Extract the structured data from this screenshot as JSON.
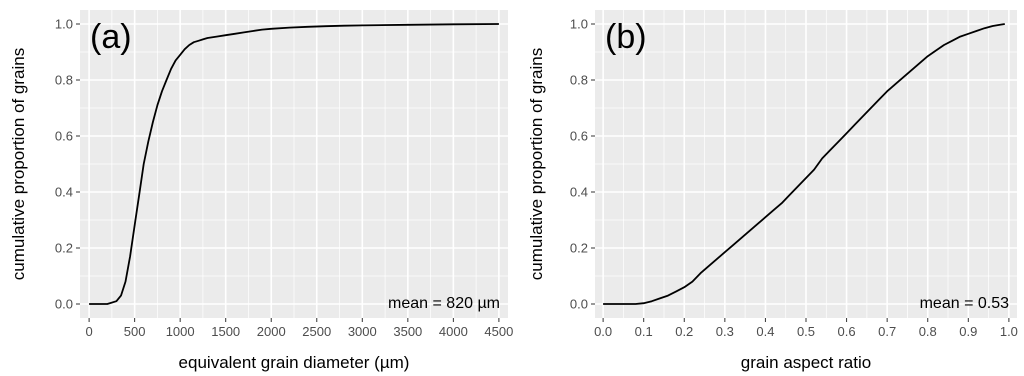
{
  "chart_data": [
    {
      "type": "line",
      "panel_label": "(a)",
      "xlabel": "equivalent grain diameter (µm)",
      "ylabel": "cumulative proportion of grains",
      "xlim": [
        -100,
        4600
      ],
      "ylim": [
        -0.05,
        1.05
      ],
      "xticks": [
        "0",
        "500",
        "1000",
        "1500",
        "2000",
        "2500",
        "3000",
        "3500",
        "4000",
        "4500"
      ],
      "yticks": [
        "0.0",
        "0.2",
        "0.4",
        "0.6",
        "0.8",
        "1.0"
      ],
      "annotation": "mean = 820 µm",
      "grid": true,
      "x": [
        0,
        200,
        300,
        350,
        400,
        450,
        500,
        550,
        600,
        650,
        700,
        750,
        800,
        850,
        900,
        950,
        1000,
        1050,
        1100,
        1150,
        1200,
        1250,
        1300,
        1400,
        1500,
        1600,
        1700,
        1800,
        1900,
        2000,
        2200,
        2400,
        2600,
        2800,
        3000,
        3500,
        4000,
        4500
      ],
      "y": [
        0,
        0,
        0.01,
        0.03,
        0.08,
        0.17,
        0.28,
        0.39,
        0.5,
        0.58,
        0.65,
        0.71,
        0.76,
        0.8,
        0.84,
        0.87,
        0.89,
        0.91,
        0.925,
        0.935,
        0.94,
        0.945,
        0.95,
        0.955,
        0.96,
        0.965,
        0.97,
        0.975,
        0.98,
        0.983,
        0.987,
        0.99,
        0.992,
        0.994,
        0.995,
        0.997,
        0.999,
        1.0
      ]
    },
    {
      "type": "line",
      "panel_label": "(b)",
      "xlabel": "grain aspect ratio",
      "ylabel": "cumulative proportion of grains",
      "xlim": [
        -0.02,
        1.02
      ],
      "ylim": [
        -0.05,
        1.05
      ],
      "xticks": [
        "0.0",
        "0.1",
        "0.2",
        "0.3",
        "0.4",
        "0.5",
        "0.6",
        "0.7",
        "0.8",
        "0.9",
        "1.0"
      ],
      "yticks": [
        "0.0",
        "0.2",
        "0.4",
        "0.6",
        "0.8",
        "1.0"
      ],
      "annotation": "mean = 0.53",
      "grid": true,
      "x": [
        0,
        0.05,
        0.08,
        0.1,
        0.12,
        0.14,
        0.16,
        0.18,
        0.2,
        0.22,
        0.24,
        0.26,
        0.28,
        0.3,
        0.32,
        0.34,
        0.36,
        0.38,
        0.4,
        0.42,
        0.44,
        0.46,
        0.48,
        0.5,
        0.52,
        0.54,
        0.56,
        0.58,
        0.6,
        0.62,
        0.64,
        0.66,
        0.68,
        0.7,
        0.72,
        0.74,
        0.76,
        0.78,
        0.8,
        0.82,
        0.84,
        0.86,
        0.88,
        0.9,
        0.92,
        0.94,
        0.96,
        0.98,
        0.99
      ],
      "y": [
        0,
        0,
        0,
        0.003,
        0.01,
        0.02,
        0.03,
        0.045,
        0.06,
        0.08,
        0.11,
        0.135,
        0.16,
        0.185,
        0.21,
        0.235,
        0.26,
        0.285,
        0.31,
        0.335,
        0.36,
        0.39,
        0.42,
        0.45,
        0.48,
        0.52,
        0.55,
        0.58,
        0.61,
        0.64,
        0.67,
        0.7,
        0.73,
        0.76,
        0.785,
        0.81,
        0.835,
        0.86,
        0.885,
        0.905,
        0.925,
        0.94,
        0.955,
        0.965,
        0.975,
        0.985,
        0.993,
        0.998,
        1.0
      ]
    }
  ]
}
